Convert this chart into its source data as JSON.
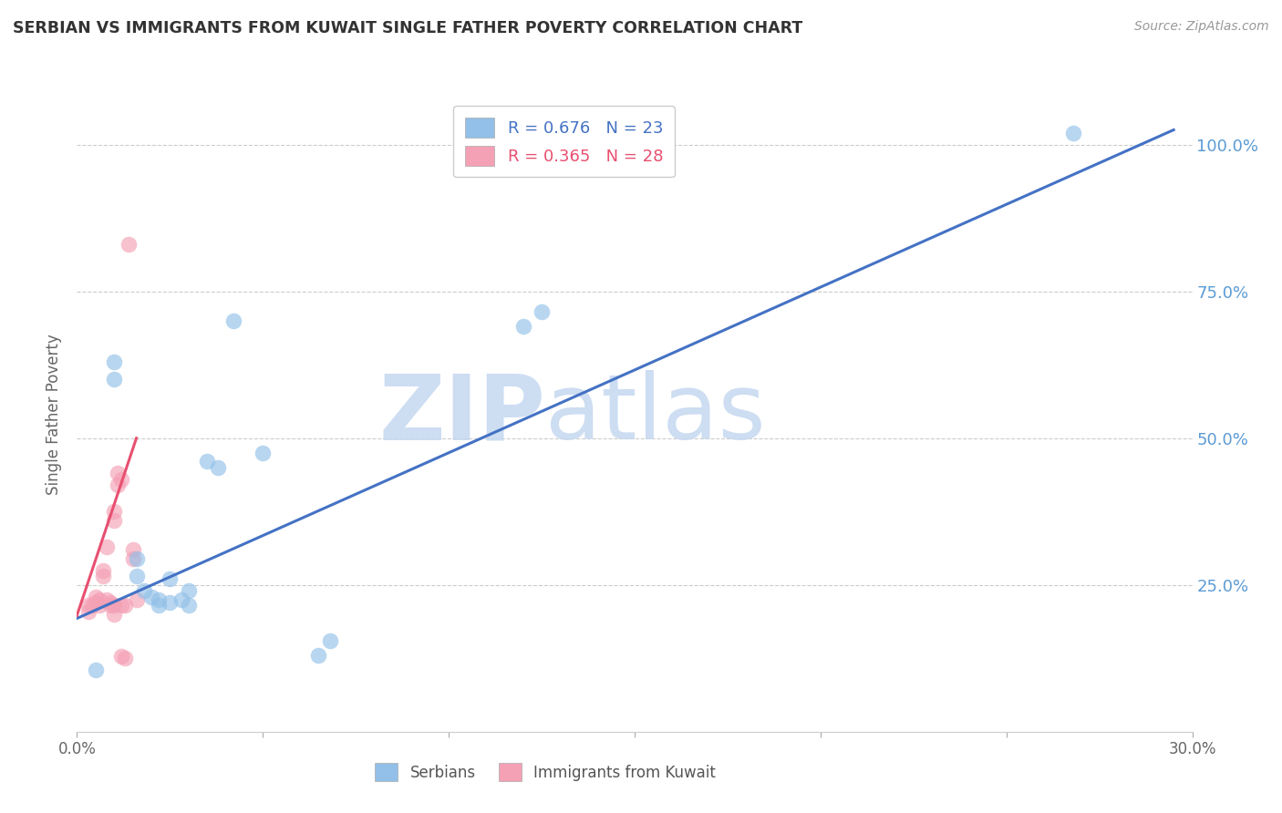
{
  "title": "SERBIAN VS IMMIGRANTS FROM KUWAIT SINGLE FATHER POVERTY CORRELATION CHART",
  "source": "Source: ZipAtlas.com",
  "ylabel": "Single Father Poverty",
  "ytick_labels": [
    "100.0%",
    "75.0%",
    "50.0%",
    "25.0%"
  ],
  "ytick_values": [
    1.0,
    0.75,
    0.5,
    0.25
  ],
  "xlim": [
    0.0,
    0.3
  ],
  "ylim": [
    0.0,
    1.08
  ],
  "legend_r_serbian": "R = 0.676",
  "legend_n_serbian": "N = 23",
  "legend_r_kuwait": "R = 0.365",
  "legend_n_kuwait": "N = 28",
  "serbian_color": "#92C0E8",
  "kuwait_color": "#F4A0B5",
  "trendline_serbian_color": "#4472C4",
  "trendline_kuwait_color": "#E85070",
  "watermark_zip": "ZIP",
  "watermark_atlas": "atlas",
  "serbian_scatter_x": [
    0.005,
    0.01,
    0.01,
    0.016,
    0.016,
    0.018,
    0.02,
    0.022,
    0.022,
    0.025,
    0.025,
    0.028,
    0.03,
    0.03,
    0.035,
    0.038,
    0.042,
    0.05,
    0.065,
    0.068,
    0.12,
    0.125,
    0.268
  ],
  "serbian_scatter_y": [
    0.105,
    0.6,
    0.63,
    0.265,
    0.295,
    0.24,
    0.23,
    0.225,
    0.215,
    0.22,
    0.26,
    0.225,
    0.215,
    0.24,
    0.46,
    0.45,
    0.7,
    0.475,
    0.13,
    0.155,
    0.69,
    0.715,
    1.02
  ],
  "kuwait_scatter_x": [
    0.003,
    0.003,
    0.004,
    0.005,
    0.005,
    0.006,
    0.006,
    0.007,
    0.007,
    0.008,
    0.008,
    0.009,
    0.009,
    0.01,
    0.01,
    0.01,
    0.01,
    0.011,
    0.011,
    0.012,
    0.012,
    0.012,
    0.013,
    0.013,
    0.014,
    0.015,
    0.015,
    0.016
  ],
  "kuwait_scatter_y": [
    0.215,
    0.205,
    0.215,
    0.22,
    0.23,
    0.225,
    0.215,
    0.265,
    0.275,
    0.315,
    0.225,
    0.22,
    0.215,
    0.215,
    0.2,
    0.36,
    0.375,
    0.42,
    0.44,
    0.43,
    0.215,
    0.128,
    0.215,
    0.125,
    0.83,
    0.295,
    0.31,
    0.225
  ],
  "serbian_trend_x": [
    0.0,
    0.295
  ],
  "serbian_trend_y": [
    0.193,
    1.025
  ],
  "kuwait_trend_x": [
    0.0,
    0.016
  ],
  "kuwait_trend_y": [
    0.198,
    0.5
  ]
}
